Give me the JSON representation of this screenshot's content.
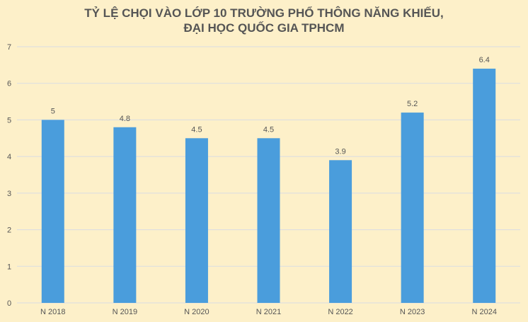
{
  "chart_data": {
    "type": "bar",
    "title_lines": [
      "TỶ LỆ CHỌI VÀO LỚP 10 TRƯỜNG PHỔ THÔNG NĂNG KHIẾU,",
      "ĐẠI HỌC QUỐC GIA TPHCM"
    ],
    "categories": [
      "N 2018",
      "N 2019",
      "N 2020",
      "N 2021",
      "N 2022",
      "N 2023",
      "N 2024"
    ],
    "values": [
      5,
      4.8,
      4.5,
      4.5,
      3.9,
      5.2,
      6.4
    ],
    "data_labels": [
      "5",
      "4.8",
      "4.5",
      "4.5",
      "3.9",
      "5.2",
      "6.4"
    ],
    "xlabel": "",
    "ylabel": "",
    "ylim": [
      0,
      7
    ],
    "yticks": [
      0,
      1,
      2,
      3,
      4,
      5,
      6,
      7
    ],
    "grid": true,
    "legend": "none",
    "colors": {
      "bar": "#4a9ddc",
      "background": "#fdf0c9",
      "grid": "#d9dde3",
      "text": "#555555"
    }
  }
}
